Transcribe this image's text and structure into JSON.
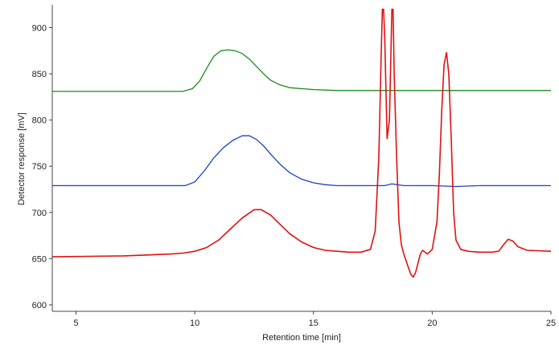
{
  "chart_data": {
    "type": "line",
    "title": "",
    "xlabel": "Retention time [min]",
    "ylabel": "Detector response [mV]",
    "xlim": [
      4,
      25
    ],
    "ylim": [
      593,
      923
    ],
    "xticks": [
      5,
      10,
      15,
      20,
      25
    ],
    "yticks": [
      600,
      650,
      700,
      750,
      800,
      850,
      900
    ],
    "grid": false,
    "legend": "none",
    "series": [
      {
        "color": "#1a8a1a",
        "x": [
          4.0,
          9.5,
          9.9,
          10.2,
          10.5,
          10.8,
          11.1,
          11.4,
          11.7,
          12.0,
          12.3,
          12.6,
          12.9,
          13.2,
          13.6,
          14.0,
          14.5,
          15.0,
          16.0,
          18.0,
          20.0,
          22.0,
          25.0
        ],
        "y": [
          831,
          831,
          834,
          842,
          856,
          869,
          875,
          876,
          875,
          872,
          866,
          858,
          850,
          843,
          838,
          835,
          834,
          833,
          832,
          832,
          832,
          832,
          832
        ]
      },
      {
        "color": "#1a3fc8",
        "x": [
          4.0,
          9.6,
          10.0,
          10.4,
          10.8,
          11.2,
          11.6,
          12.0,
          12.3,
          12.6,
          12.9,
          13.2,
          13.6,
          14.0,
          14.5,
          15.0,
          15.5,
          16.0,
          17.0,
          18.0,
          18.3,
          18.8,
          19.5,
          20.0,
          21.0,
          22.0,
          25.0
        ],
        "y": [
          729,
          729,
          733,
          745,
          759,
          770,
          778,
          783,
          783,
          779,
          772,
          763,
          752,
          743,
          736,
          732,
          730,
          729,
          729,
          729,
          731,
          729,
          729,
          729,
          728,
          729,
          729
        ]
      },
      {
        "color": "#e01010",
        "x": [
          4.0,
          7.0,
          8.0,
          9.0,
          9.5,
          10.0,
          10.5,
          11.0,
          11.5,
          12.0,
          12.5,
          12.8,
          13.2,
          13.6,
          14.0,
          14.5,
          15.0,
          15.5,
          16.0,
          16.5,
          17.0,
          17.4,
          17.6,
          17.75,
          17.85,
          17.9,
          17.95,
          18.0,
          18.1,
          18.2,
          18.3,
          18.35,
          18.4,
          18.5,
          18.6,
          18.7,
          18.8,
          19.0,
          19.1,
          19.2,
          19.3,
          19.4,
          19.5,
          19.6,
          19.7,
          19.8,
          20.0,
          20.2,
          20.3,
          20.4,
          20.5,
          20.6,
          20.7,
          20.8,
          20.9,
          21.0,
          21.2,
          21.5,
          22.0,
          22.5,
          22.8,
          23.0,
          23.2,
          23.4,
          23.6,
          24.0,
          25.0
        ],
        "y": [
          652,
          653,
          654,
          655,
          656,
          658,
          662,
          670,
          682,
          694,
          703,
          703,
          697,
          687,
          677,
          668,
          662,
          659,
          658,
          657,
          657,
          660,
          680,
          760,
          870,
          920,
          920,
          890,
          780,
          800,
          920,
          920,
          850,
          760,
          690,
          665,
          655,
          640,
          633,
          630,
          635,
          645,
          655,
          659,
          657,
          655,
          660,
          690,
          740,
          810,
          860,
          873,
          850,
          780,
          700,
          670,
          660,
          658,
          657,
          657,
          658,
          665,
          671,
          669,
          663,
          659,
          658
        ]
      }
    ]
  }
}
